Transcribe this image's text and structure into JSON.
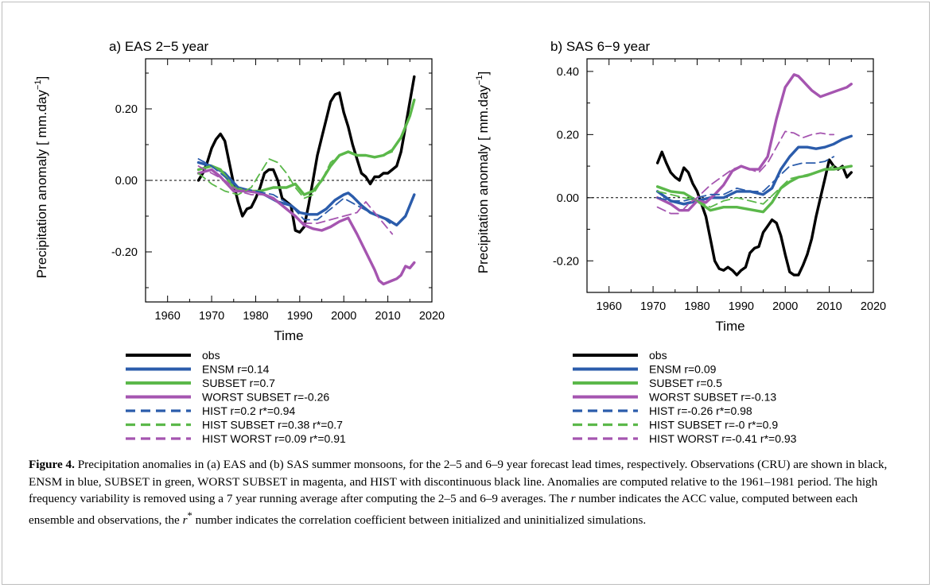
{
  "caption": {
    "label": "Figure 4.",
    "part1": "Precipitation anomalies in (a) EAS and (b) SAS summer monsoons, for the 2–5 and 6–9 year forecast lead times, respectively. Observations (CRU) are shown in black, ENSM in blue, SUBSET in green, WORST SUBSET in magenta, and HIST with discontinuous black line. Anomalies are computed relative to the 1961–1981 period. The high frequency variability is removed using a 7 year running average after computing the 2–5 and 6–9 averages. The ",
    "r_symbol": "r",
    "part2": " number indicates the ACC value, computed between each ensemble and observations, the ",
    "rstar_symbol": "r",
    "rstar_sup": "*",
    "part3": " number indicates the correlation coefficient between initialized and uninitialized simulations."
  },
  "chart_data": [
    {
      "type": "line",
      "title": "a) EAS 2−5 year",
      "xlabel": "Time",
      "ylabel": "Precipitation  anomaly  [ mm.day",
      "ylabel_sup": "−1",
      "ylabel_end": "]",
      "xlim": [
        1955,
        2020
      ],
      "ylim": [
        -0.34,
        0.34
      ],
      "xticks": [
        1960,
        1970,
        1980,
        1990,
        2000,
        2010,
        2020
      ],
      "xtick_labels": [
        "1960",
        "1970",
        "1980",
        "1990",
        "2000",
        "2010",
        "2020"
      ],
      "yticks": [
        -0.2,
        0.0,
        0.2
      ],
      "ytick_labels": [
        "-0.20",
        "0.00",
        "0.20"
      ],
      "zero_line": true,
      "grid": false,
      "legend_position": "below",
      "series": [
        {
          "name": "obs",
          "color": "#000000",
          "style": "solid",
          "x": [
            1967,
            1968,
            1969,
            1970,
            1971,
            1972,
            1973,
            1974,
            1975,
            1976,
            1977,
            1978,
            1979,
            1980,
            1981,
            1982,
            1983,
            1984,
            1985,
            1986,
            1987,
            1988,
            1989,
            1990,
            1991,
            1992,
            1993,
            1994,
            1995,
            1996,
            1997,
            1998,
            1999,
            2000,
            2001,
            2002,
            2003,
            2004,
            2005,
            2006,
            2007,
            2008,
            2009,
            2010,
            2011,
            2012,
            2013,
            2014,
            2015,
            2016
          ],
          "y": [
            0.0,
            0.02,
            0.05,
            0.09,
            0.115,
            0.13,
            0.11,
            0.05,
            -0.01,
            -0.06,
            -0.1,
            -0.08,
            -0.075,
            -0.05,
            -0.02,
            0.02,
            0.03,
            0.03,
            0.0,
            -0.05,
            -0.06,
            -0.07,
            -0.14,
            -0.145,
            -0.13,
            -0.07,
            0.0,
            0.07,
            0.12,
            0.17,
            0.22,
            0.24,
            0.245,
            0.19,
            0.15,
            0.1,
            0.06,
            0.02,
            0.01,
            -0.01,
            0.01,
            0.01,
            0.02,
            0.02,
            0.03,
            0.04,
            0.08,
            0.15,
            0.22,
            0.29
          ]
        },
        {
          "name": "ENSM r=0.14",
          "color": "#2b5cab",
          "style": "solid",
          "x": [
            1967,
            1970,
            1973,
            1976,
            1979,
            1982,
            1985,
            1988,
            1990,
            1992,
            1994,
            1996,
            1998,
            2000,
            2001,
            2002,
            2004,
            2006,
            2008,
            2010,
            2012,
            2014,
            2016
          ],
          "y": [
            0.05,
            0.04,
            0.02,
            -0.02,
            -0.03,
            -0.04,
            -0.06,
            -0.07,
            -0.09,
            -0.095,
            -0.095,
            -0.08,
            -0.055,
            -0.04,
            -0.035,
            -0.045,
            -0.07,
            -0.09,
            -0.1,
            -0.11,
            -0.125,
            -0.1,
            -0.04
          ]
        },
        {
          "name": "SUBSET r=0.7",
          "color": "#5bb84a",
          "style": "solid",
          "x": [
            1967,
            1970,
            1972,
            1975,
            1978,
            1981,
            1984,
            1987,
            1989,
            1991,
            1993,
            1995,
            1997,
            1999,
            2001,
            2003,
            2005,
            2007,
            2009,
            2011,
            2013,
            2015,
            2016
          ],
          "y": [
            0.03,
            0.04,
            0.03,
            -0.02,
            -0.03,
            -0.03,
            -0.02,
            -0.02,
            -0.01,
            -0.04,
            -0.03,
            0.0,
            0.04,
            0.07,
            0.08,
            0.07,
            0.07,
            0.065,
            0.07,
            0.085,
            0.12,
            0.18,
            0.225
          ]
        },
        {
          "name": "WORST SUBSET r=-0.26",
          "color": "#a555b0",
          "style": "solid",
          "x": [
            1967,
            1970,
            1972,
            1975,
            1978,
            1981,
            1984,
            1987,
            1989,
            1991,
            1993,
            1995,
            1997,
            1999,
            2001,
            2003,
            2005,
            2007,
            2008,
            2009,
            2010,
            2011,
            2012,
            2013,
            2014,
            2015,
            2016
          ],
          "y": [
            0.02,
            0.03,
            0.01,
            -0.03,
            -0.03,
            -0.035,
            -0.05,
            -0.08,
            -0.1,
            -0.125,
            -0.135,
            -0.14,
            -0.13,
            -0.115,
            -0.105,
            -0.15,
            -0.2,
            -0.25,
            -0.28,
            -0.29,
            -0.285,
            -0.28,
            -0.275,
            -0.265,
            -0.24,
            -0.245,
            -0.23
          ]
        },
        {
          "name": "HIST r=0.2 r*=0.94",
          "color": "#2b5cab",
          "style": "dashed",
          "x": [
            1967,
            1970,
            1973,
            1976,
            1980,
            1984,
            1988,
            1991,
            1994,
            1997,
            2000,
            2003,
            2006,
            2009,
            2011
          ],
          "y": [
            0.06,
            0.04,
            0.01,
            -0.02,
            -0.03,
            -0.04,
            -0.07,
            -0.11,
            -0.11,
            -0.08,
            -0.05,
            -0.07,
            -0.09,
            -0.105,
            -0.125
          ]
        },
        {
          "name": "HIST SUBSET r=0.38 r*=0.7",
          "color": "#5bb84a",
          "style": "dashed",
          "x": [
            1967,
            1970,
            1973,
            1976,
            1979,
            1981,
            1983,
            1985,
            1987,
            1989,
            1991,
            1993,
            1995,
            1997,
            1999,
            2001,
            2003,
            2005,
            2007,
            2009,
            2011
          ],
          "y": [
            0.02,
            -0.01,
            -0.03,
            -0.04,
            -0.02,
            0.02,
            0.06,
            0.05,
            0.02,
            -0.02,
            -0.05,
            -0.04,
            0.0,
            0.05,
            0.07,
            0.08,
            0.07,
            0.07,
            0.065,
            0.07,
            0.08
          ]
        },
        {
          "name": "HIST WORST r=0.09 r*=0.91",
          "color": "#a555b0",
          "style": "dashed",
          "x": [
            1967,
            1970,
            1973,
            1976,
            1979,
            1982,
            1985,
            1988,
            1991,
            1994,
            1997,
            2000,
            2003,
            2005,
            2007,
            2009,
            2011
          ],
          "y": [
            0.04,
            0.02,
            0.0,
            -0.03,
            -0.04,
            -0.04,
            -0.06,
            -0.09,
            -0.12,
            -0.12,
            -0.11,
            -0.1,
            -0.09,
            -0.06,
            -0.09,
            -0.12,
            -0.15
          ]
        }
      ]
    },
    {
      "type": "line",
      "title": "b) SAS 6−9 year",
      "xlabel": "Time",
      "ylabel": "Precipitation  anomaly  [ mm.day",
      "ylabel_sup": "−1",
      "ylabel_end": "]",
      "xlim": [
        1955,
        2020
      ],
      "ylim": [
        -0.3,
        0.44
      ],
      "xticks": [
        1960,
        1970,
        1980,
        1990,
        2000,
        2010,
        2020
      ],
      "xtick_labels": [
        "1960",
        "1970",
        "1980",
        "1990",
        "2000",
        "2010",
        "2020"
      ],
      "yticks": [
        -0.2,
        0.0,
        0.2,
        0.4
      ],
      "ytick_labels": [
        "-0.20",
        "0.00",
        "0.20",
        "0.40"
      ],
      "zero_line": true,
      "grid": false,
      "legend_position": "below",
      "series": [
        {
          "name": "obs",
          "color": "#000000",
          "style": "solid",
          "x": [
            1971,
            1972,
            1973,
            1974,
            1975,
            1976,
            1977,
            1978,
            1979,
            1980,
            1981,
            1982,
            1983,
            1984,
            1985,
            1986,
            1987,
            1988,
            1989,
            1990,
            1991,
            1992,
            1993,
            1994,
            1995,
            1996,
            1997,
            1998,
            1999,
            2000,
            2001,
            2002,
            2003,
            2004,
            2005,
            2006,
            2007,
            2008,
            2009,
            2010,
            2011,
            2012,
            2013,
            2014,
            2015
          ],
          "y": [
            0.11,
            0.145,
            0.11,
            0.08,
            0.065,
            0.055,
            0.095,
            0.08,
            0.045,
            0.02,
            -0.02,
            -0.06,
            -0.13,
            -0.2,
            -0.225,
            -0.23,
            -0.22,
            -0.23,
            -0.245,
            -0.23,
            -0.22,
            -0.175,
            -0.16,
            -0.155,
            -0.11,
            -0.09,
            -0.07,
            -0.08,
            -0.12,
            -0.18,
            -0.235,
            -0.245,
            -0.245,
            -0.215,
            -0.18,
            -0.13,
            -0.06,
            0.0,
            0.06,
            0.12,
            0.1,
            0.09,
            0.1,
            0.065,
            0.08
          ]
        },
        {
          "name": "ENSM r=0.09",
          "color": "#2b5cab",
          "style": "solid",
          "x": [
            1971,
            1974,
            1977,
            1980,
            1983,
            1986,
            1989,
            1992,
            1995,
            1997,
            1999,
            2001,
            2003,
            2005,
            2007,
            2009,
            2011,
            2013,
            2015
          ],
          "y": [
            0.02,
            -0.01,
            -0.02,
            -0.01,
            0.0,
            0.0,
            0.02,
            0.02,
            0.01,
            0.03,
            0.09,
            0.13,
            0.16,
            0.16,
            0.155,
            0.16,
            0.17,
            0.185,
            0.195
          ]
        },
        {
          "name": "SUBSET r=0.5",
          "color": "#5bb84a",
          "style": "solid",
          "x": [
            1971,
            1974,
            1977,
            1980,
            1983,
            1986,
            1989,
            1991,
            1993,
            1995,
            1997,
            1999,
            2001,
            2003,
            2005,
            2007,
            2009,
            2011,
            2013,
            2015
          ],
          "y": [
            0.035,
            0.02,
            0.015,
            -0.01,
            -0.04,
            -0.03,
            -0.03,
            -0.035,
            -0.04,
            -0.045,
            -0.015,
            0.03,
            0.05,
            0.065,
            0.07,
            0.08,
            0.09,
            0.09,
            0.095,
            0.1
          ]
        },
        {
          "name": "WORST SUBSET r=-0.13",
          "color": "#a555b0",
          "style": "solid",
          "x": [
            1971,
            1974,
            1976,
            1978,
            1980,
            1982,
            1984,
            1986,
            1988,
            1990,
            1992,
            1994,
            1996,
            1998,
            2000,
            2002,
            2003,
            2004,
            2006,
            2008,
            2010,
            2012,
            2014,
            2015
          ],
          "y": [
            0.0,
            -0.02,
            -0.04,
            -0.04,
            -0.01,
            -0.015,
            0.01,
            0.04,
            0.085,
            0.1,
            0.09,
            0.09,
            0.13,
            0.25,
            0.35,
            0.39,
            0.385,
            0.37,
            0.34,
            0.32,
            0.33,
            0.34,
            0.35,
            0.36
          ]
        },
        {
          "name": "HIST r=-0.26 r*=0.98",
          "color": "#2b5cab",
          "style": "dashed",
          "x": [
            1971,
            1974,
            1977,
            1980,
            1983,
            1986,
            1989,
            1992,
            1995,
            1998,
            2001,
            2004,
            2007,
            2009,
            2011
          ],
          "y": [
            0.0,
            -0.01,
            -0.01,
            0.0,
            0.01,
            0.01,
            0.03,
            0.02,
            0.02,
            0.06,
            0.1,
            0.11,
            0.11,
            0.115,
            0.13
          ]
        },
        {
          "name": "HIST SUBSET r=-0 r*=0.9",
          "color": "#5bb84a",
          "style": "dashed",
          "x": [
            1971,
            1974,
            1977,
            1980,
            1983,
            1986,
            1989,
            1992,
            1995,
            1998,
            2001,
            2004,
            2007,
            2009,
            2011
          ],
          "y": [
            0.02,
            0.01,
            0.0,
            -0.01,
            -0.03,
            -0.01,
            0.0,
            -0.01,
            -0.02,
            0.02,
            0.06,
            0.07,
            0.08,
            0.09,
            0.1
          ]
        },
        {
          "name": "HIST WORST r=-0.41 r*=0.93",
          "color": "#a555b0",
          "style": "dashed",
          "x": [
            1971,
            1974,
            1976,
            1978,
            1980,
            1983,
            1986,
            1988,
            1990,
            1992,
            1994,
            1996,
            1998,
            2000,
            2002,
            2004,
            2006,
            2008,
            2010,
            2011
          ],
          "y": [
            -0.03,
            -0.05,
            -0.05,
            -0.02,
            0.0,
            0.04,
            0.07,
            0.09,
            0.1,
            0.09,
            0.08,
            0.11,
            0.16,
            0.21,
            0.205,
            0.19,
            0.2,
            0.205,
            0.2,
            0.2
          ]
        }
      ]
    }
  ]
}
